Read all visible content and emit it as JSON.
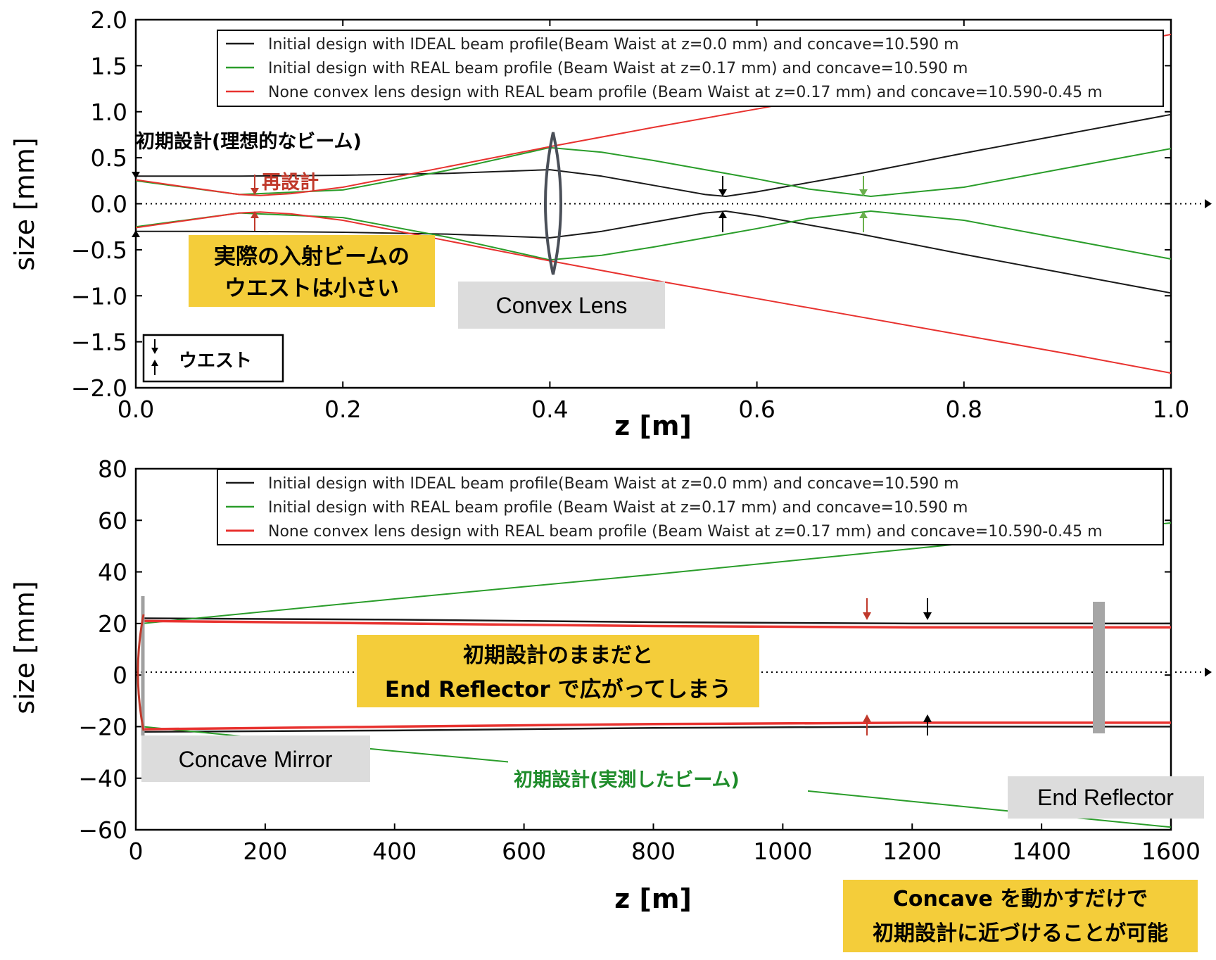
{
  "colors": {
    "ideal": "#1a1a1a",
    "real": "#2a9d2a",
    "none_convex": "#e8322f",
    "note_bg": "#f4cd3a",
    "label_bg": "#dcdcdc",
    "anno_red": "#c0392b",
    "anno_green": "#1e8c2a"
  },
  "legend": {
    "ideal": "Initial design with IDEAL beam profile(Beam Waist at z=0.0 mm) and concave=10.590 m",
    "real": "Initial design with REAL beam profile (Beam Waist at z=0.17 mm) and concave=10.590 m",
    "none_convex": "None convex lens design with REAL beam profile (Beam Waist at z=0.17 mm) and concave=10.590-0.45 m"
  },
  "top": {
    "ylabel": "size [mm]",
    "xlabel": "z [m]",
    "annotations": {
      "ideal_label": "初期設計(理想的なビーム)",
      "redesign": "再設計",
      "note_line1": "実際の入射ビームの",
      "note_line2": "ウエストは小さい",
      "convex_lens": "Convex Lens",
      "waist_key": "ウエスト"
    }
  },
  "bottom": {
    "ylabel": "size [mm]",
    "xlabel": "z [m]",
    "annotations": {
      "concave_mirror": "Concave Mirror",
      "end_reflector": "End Reflector",
      "real_label": "初期設計(実測したビーム)",
      "note_line1": "初期設計のままだと",
      "note_line2": "End Reflector で広がってしまう",
      "note2_line1": "Concave を動かすだけで",
      "note2_line2": "初期設計に近づけることが可能"
    }
  },
  "chart_data": [
    {
      "type": "line",
      "xlabel": "z [m]",
      "ylabel": "size [mm]",
      "xlim": [
        0.0,
        1.0
      ],
      "ylim": [
        -2.0,
        2.0
      ],
      "xticks": [
        "0.0",
        "0.2",
        "0.4",
        "0.6",
        "0.8",
        "1.0"
      ],
      "yticks": [
        "2.0",
        "1.5",
        "1.0",
        "0.5",
        "0.0",
        "−0.5",
        "−1.0",
        "−1.5",
        "−2.0"
      ],
      "legend_position": "top-right",
      "optical_axis_y": 0.0,
      "series": [
        {
          "name": "Initial design with IDEAL beam profile(Beam Waist at z=0.0 mm) and concave=10.590 m",
          "key": "ideal",
          "x": [
            0.0,
            0.1,
            0.2,
            0.3,
            0.4,
            0.45,
            0.5,
            0.55,
            0.57,
            0.6,
            0.7,
            0.8,
            0.9,
            1.0
          ],
          "upper": [
            0.3,
            0.3,
            0.31,
            0.33,
            0.37,
            0.3,
            0.2,
            0.1,
            0.08,
            0.13,
            0.33,
            0.55,
            0.76,
            0.97
          ]
        },
        {
          "name": "Initial design with REAL beam profile (Beam Waist at z=0.17 mm) and concave=10.590 m",
          "key": "real",
          "x": [
            0.0,
            0.1,
            0.2,
            0.3,
            0.4,
            0.45,
            0.5,
            0.55,
            0.6,
            0.65,
            0.71,
            0.8,
            0.9,
            1.0
          ],
          "upper": [
            0.25,
            0.1,
            0.15,
            0.36,
            0.61,
            0.56,
            0.47,
            0.37,
            0.27,
            0.16,
            0.08,
            0.18,
            0.39,
            0.6
          ]
        },
        {
          "name": "None convex lens design with REAL beam profile (Beam Waist at z=0.17 mm) and concave=10.590-0.45 m",
          "key": "none_convex",
          "x": [
            0.0,
            0.05,
            0.1,
            0.12,
            0.15,
            0.2,
            0.3,
            0.4,
            0.5,
            0.6,
            0.7,
            0.8,
            0.9,
            1.0
          ],
          "upper": [
            0.26,
            0.18,
            0.1,
            0.09,
            0.11,
            0.18,
            0.4,
            0.62,
            0.83,
            1.03,
            1.23,
            1.43,
            1.63,
            1.84
          ]
        }
      ]
    },
    {
      "type": "line",
      "xlabel": "z [m]",
      "ylabel": "size [mm]",
      "xlim": [
        0,
        1600
      ],
      "ylim": [
        -60,
        80
      ],
      "xticks": [
        "0",
        "200",
        "400",
        "600",
        "800",
        "1000",
        "1200",
        "1400",
        "1600"
      ],
      "yticks": [
        "80",
        "60",
        "40",
        "20",
        "0",
        "−20",
        "−40",
        "−60"
      ],
      "legend_position": "top-right",
      "optical_axis_y": 0,
      "series": [
        {
          "name": "Initial design with IDEAL beam profile(Beam Waist at z=0.0 mm) and concave=10.590 m",
          "key": "ideal",
          "x": [
            10,
            400,
            800,
            1200,
            1600
          ],
          "upper": [
            22,
            21.5,
            20.5,
            20,
            20
          ]
        },
        {
          "name": "Initial design with REAL beam profile (Beam Waist at z=0.17 mm) and concave=10.590 m",
          "key": "real",
          "x": [
            10,
            400,
            800,
            1200,
            1600
          ],
          "upper": [
            20,
            29.5,
            39,
            49,
            59
          ]
        },
        {
          "name": "None convex lens design with REAL beam profile (Beam Waist at z=0.17 mm) and concave=10.590-0.45 m",
          "key": "none_convex",
          "x": [
            10,
            400,
            800,
            1200,
            1600
          ],
          "upper": [
            21,
            20,
            19,
            18.5,
            18.5
          ]
        }
      ]
    }
  ]
}
